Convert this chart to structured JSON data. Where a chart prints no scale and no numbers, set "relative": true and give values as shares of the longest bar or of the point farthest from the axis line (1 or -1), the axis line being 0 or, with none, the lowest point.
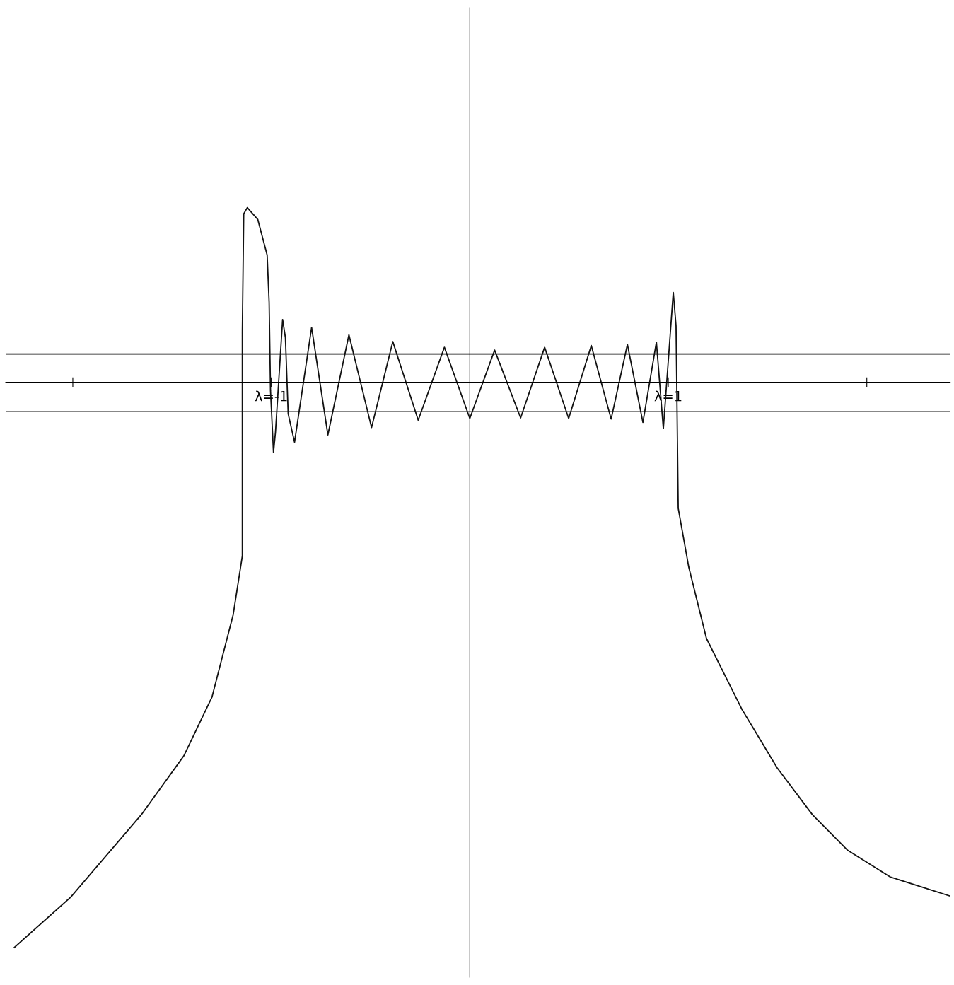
{
  "chart_data": {
    "type": "line",
    "relative": true,
    "x": [
      -2.295,
      -2.011,
      -1.655,
      -1.441,
      -1.299,
      -1.192,
      -1.146,
      -1.146,
      -1.139,
      -1.121,
      -1.068,
      -1.021,
      -1.011,
      -1.004,
      -0.989,
      -0.979,
      -0.943,
      -0.929,
      -0.915,
      -0.883,
      -0.797,
      -0.715,
      -0.609,
      -0.495,
      -0.388,
      -0.26,
      -0.128,
      0,
      0.125,
      0.256,
      0.377,
      0.498,
      0.612,
      0.712,
      0.794,
      0.872,
      0.94,
      0.975,
      1.025,
      1.039,
      1.05,
      1.103,
      1.192,
      1.37,
      1.548,
      1.726,
      1.904,
      2.117,
      2.42
    ],
    "series": [
      {
        "color": "#111111",
        "values": [
          -1.0,
          -0.911,
          -0.765,
          -0.661,
          -0.557,
          -0.411,
          -0.307,
          0.09,
          0.298,
          0.309,
          0.288,
          0.225,
          0.142,
          -0.015,
          -0.124,
          -0.088,
          0.111,
          0.079,
          -0.056,
          -0.106,
          0.097,
          -0.093,
          0.084,
          -0.08,
          0.072,
          -0.067,
          0.062,
          -0.064,
          0.057,
          -0.063,
          0.062,
          -0.064,
          0.065,
          -0.065,
          0.067,
          -0.071,
          0.071,
          -0.082,
          0.159,
          0.1,
          -0.223,
          -0.327,
          -0.453,
          -0.578,
          -0.682,
          -0.765,
          -0.828,
          -0.875,
          -0.909
        ]
      }
    ],
    "xlim": [
      -2.338,
      2.42
    ],
    "xticks": [
      {
        "value": -2,
        "label": null
      },
      {
        "value": -1,
        "label": "λ=-1"
      },
      {
        "value": 1,
        "label": "λ=1"
      },
      {
        "value": 2,
        "label": null
      }
    ],
    "ref_lines": [
      {
        "axis": "y",
        "value": 0.05,
        "color": "#111111"
      },
      {
        "axis": "y",
        "value": -0.052,
        "color": "#111111"
      }
    ],
    "tick_labels": "x",
    "grid": false,
    "legend": false
  }
}
